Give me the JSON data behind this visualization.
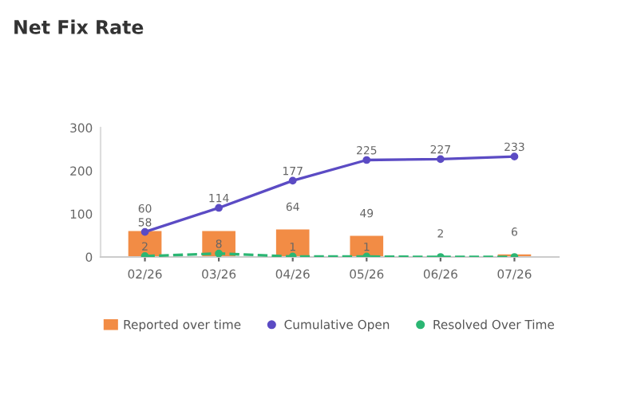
{
  "chart_data": {
    "type": "bar",
    "title": "Net Fix Rate",
    "categories": [
      "02/26",
      "03/26",
      "04/26",
      "05/26",
      "06/26",
      "07/26"
    ],
    "series": [
      {
        "name": "Reported over time",
        "color": "#f28c45",
        "values": [
          60,
          60,
          64,
          49,
          2,
          6
        ],
        "value_labels": [
          "60",
          null,
          "64",
          "49",
          "2",
          "6"
        ]
      },
      {
        "name": "Cumulative Open",
        "type": "line",
        "color": "#5b4bc4",
        "values": [
          58,
          114,
          177,
          225,
          227,
          233
        ],
        "value_labels": [
          "58",
          "114",
          "177",
          "225",
          "227",
          "233"
        ],
        "line_style": "solid"
      },
      {
        "name": "Resolved Over Time",
        "type": "line",
        "color": "#2bb673",
        "values": [
          2,
          8,
          1,
          1,
          0,
          0
        ],
        "value_labels": [
          "2",
          "8",
          "1",
          "1",
          null,
          null
        ],
        "line_style": "dashed"
      }
    ],
    "ylim": [
      0,
      300
    ],
    "yticks": [
      0,
      100,
      200,
      300
    ],
    "grid": false,
    "legend": "bottom",
    "marker": "circle"
  }
}
